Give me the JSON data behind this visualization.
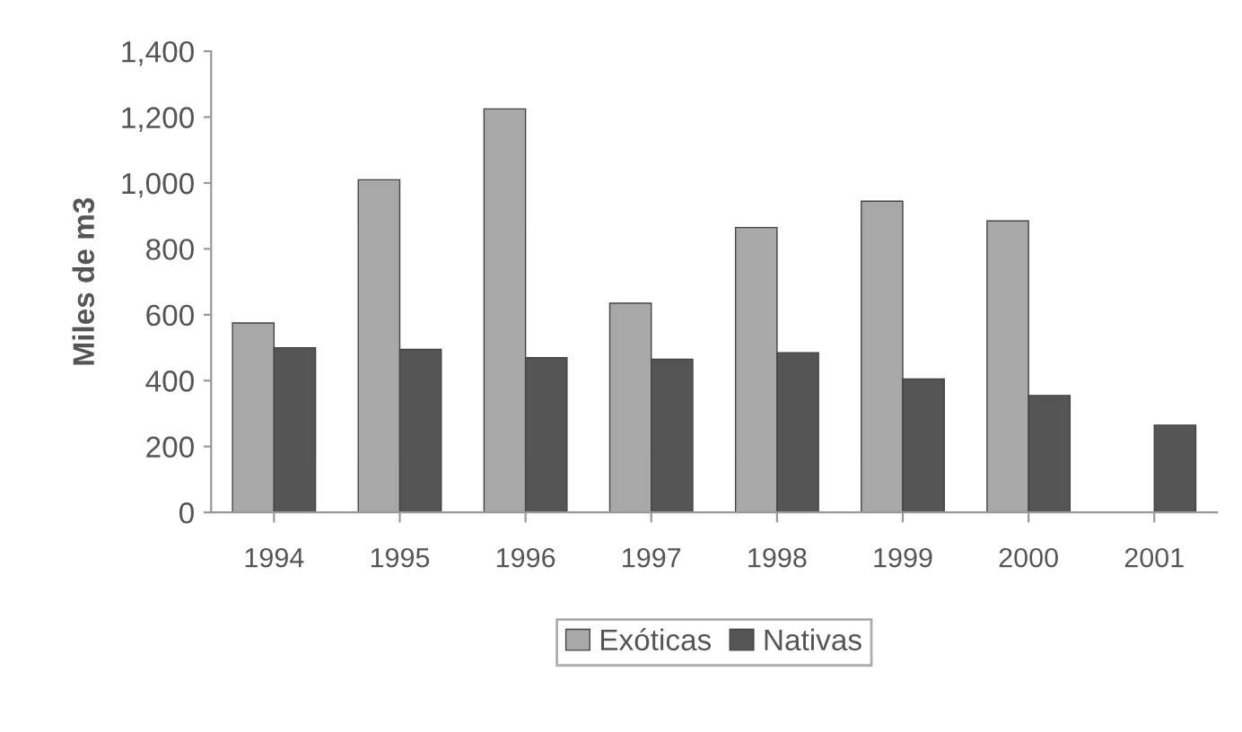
{
  "chart_data": {
    "type": "bar",
    "ylabel": "Miles de m3",
    "categories": [
      "1994",
      "1995",
      "1996",
      "1997",
      "1998",
      "1999",
      "2000",
      "2001"
    ],
    "series": [
      {
        "name": "Exóticas",
        "color": "#a8a8a8",
        "values": [
          575,
          1010,
          1225,
          635,
          865,
          945,
          885,
          null
        ]
      },
      {
        "name": "Nativas",
        "color": "#555555",
        "values": [
          500,
          495,
          470,
          465,
          485,
          405,
          355,
          265
        ]
      }
    ],
    "ylim": [
      0,
      1400
    ],
    "yticks": [
      {
        "value": 0,
        "label": "0"
      },
      {
        "value": 200,
        "label": "200"
      },
      {
        "value": 400,
        "label": "400"
      },
      {
        "value": 600,
        "label": "600"
      },
      {
        "value": 800,
        "label": "800"
      },
      {
        "value": 1000,
        "label": "1,000"
      },
      {
        "value": 1200,
        "label": "1,200"
      },
      {
        "value": 1400,
        "label": "1,400"
      }
    ],
    "grid": false,
    "legend": "bottom"
  }
}
